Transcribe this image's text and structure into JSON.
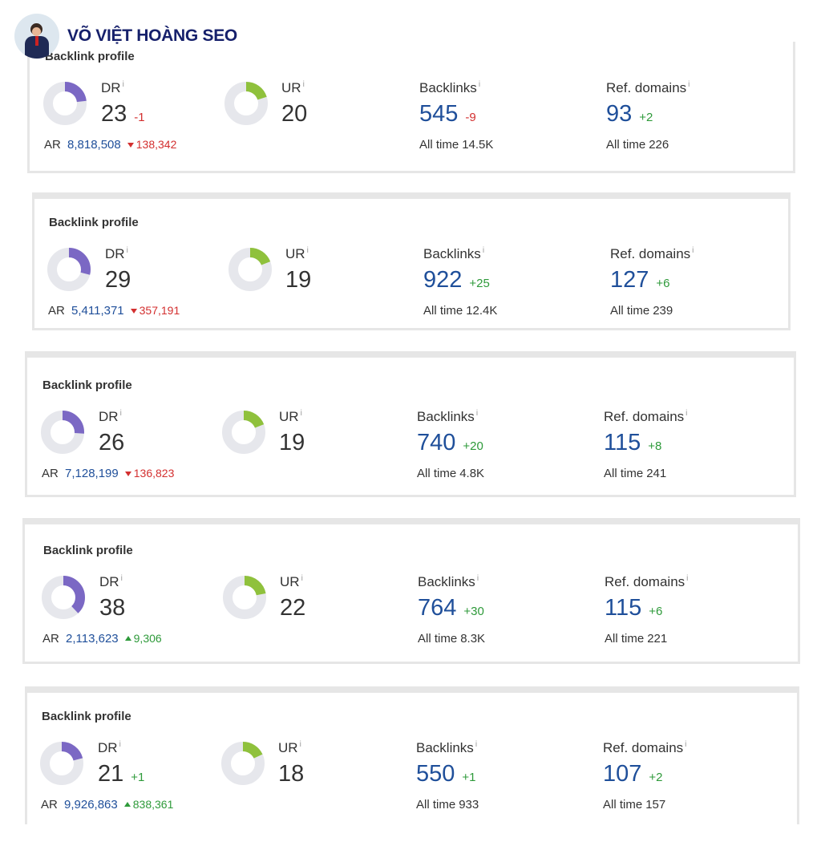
{
  "brand": {
    "name": "VÕ VIỆT HOÀNG SEO"
  },
  "colors": {
    "dr_ring": "#7b68c4",
    "ur_ring": "#8fc13c",
    "track": "#e6e7ec",
    "blue": "#1f4f9a",
    "red": "#d32f2f",
    "green": "#2e9a3a"
  },
  "labels": {
    "info": "i",
    "all_time": "All time",
    "ar": "AR"
  },
  "panels": [
    {
      "title": "Backlink profile",
      "dr": "23",
      "dr_fill": 0.23,
      "dr_change": "-1",
      "dr_change_dir": "neg",
      "ur": "20",
      "ur_fill": 0.2,
      "ur_change": "",
      "ar": "8,818,508",
      "ar_change": "138,342",
      "ar_change_dir": "down",
      "backlinks": "545",
      "backlinks_change": "-9",
      "backlinks_change_dir": "neg",
      "backlinks_all": "14.5K",
      "refdomains": "93",
      "refdomains_change": "+2",
      "refdomains_change_dir": "pos",
      "refdomains_all": "226"
    },
    {
      "title": "Backlink profile",
      "dr": "29",
      "dr_fill": 0.29,
      "dr_change": "",
      "dr_change_dir": "neg",
      "ur": "19",
      "ur_fill": 0.19,
      "ur_change": "",
      "ar": "5,411,371",
      "ar_change": "357,191",
      "ar_change_dir": "down",
      "backlinks": "922",
      "backlinks_change": "+25",
      "backlinks_change_dir": "pos",
      "backlinks_all": "12.4K",
      "refdomains": "127",
      "refdomains_change": "+6",
      "refdomains_change_dir": "pos",
      "refdomains_all": "239"
    },
    {
      "title": "Backlink profile",
      "dr": "26",
      "dr_fill": 0.26,
      "dr_change": "",
      "dr_change_dir": "neg",
      "ur": "19",
      "ur_fill": 0.19,
      "ur_change": "",
      "ar": "7,128,199",
      "ar_change": "136,823",
      "ar_change_dir": "down",
      "backlinks": "740",
      "backlinks_change": "+20",
      "backlinks_change_dir": "pos",
      "backlinks_all": "4.8K",
      "refdomains": "115",
      "refdomains_change": "+8",
      "refdomains_change_dir": "pos",
      "refdomains_all": "241"
    },
    {
      "title": "Backlink profile",
      "dr": "38",
      "dr_fill": 0.38,
      "dr_change": "",
      "dr_change_dir": "neg",
      "ur": "22",
      "ur_fill": 0.22,
      "ur_change": "",
      "ar": "2,113,623",
      "ar_change": "9,306",
      "ar_change_dir": "up",
      "backlinks": "764",
      "backlinks_change": "+30",
      "backlinks_change_dir": "pos",
      "backlinks_all": "8.3K",
      "refdomains": "115",
      "refdomains_change": "+6",
      "refdomains_change_dir": "pos",
      "refdomains_all": "221"
    },
    {
      "title": "Backlink profile",
      "dr": "21",
      "dr_fill": 0.21,
      "dr_change": "+1",
      "dr_change_dir": "pos",
      "ur": "18",
      "ur_fill": 0.18,
      "ur_change": "",
      "ar": "9,926,863",
      "ar_change": "838,361",
      "ar_change_dir": "up",
      "backlinks": "550",
      "backlinks_change": "+1",
      "backlinks_change_dir": "pos",
      "backlinks_all": "933",
      "refdomains": "107",
      "refdomains_change": "+2",
      "refdomains_change_dir": "pos",
      "refdomains_all": "157"
    }
  ]
}
